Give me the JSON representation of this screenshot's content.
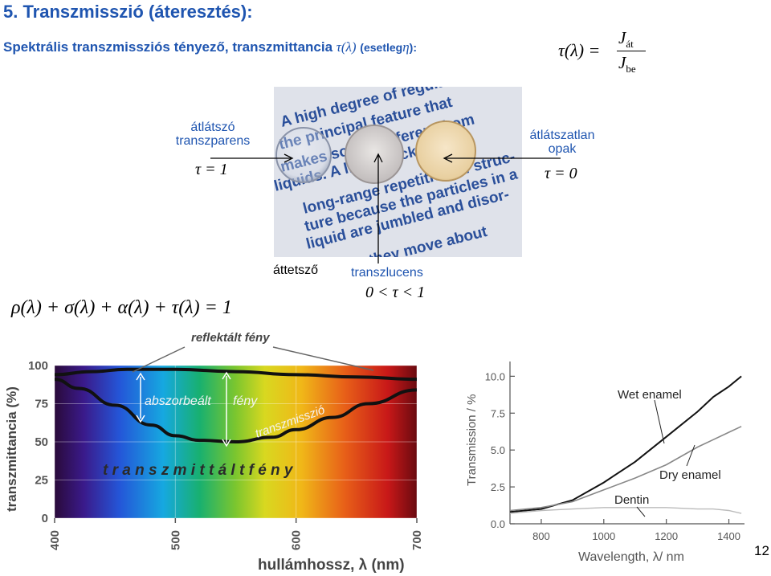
{
  "title": "5. Transzmisszió (áteresztés):",
  "subtitle": {
    "text": "Spektrális transzmissziós tényező, transzmittancia",
    "symbol": "τ(λ)",
    "note_prefix": "(esetleg",
    "note_symbol": "η",
    "note_suffix": "):"
  },
  "formula_tau": {
    "lhs": "τ(λ) =",
    "numerator": "J",
    "num_sub": "át",
    "denominator": "J",
    "den_sub": "be"
  },
  "formula_sum": "ρ(λ) + σ(λ) + α(λ) + τ(λ) = 1",
  "transparent": {
    "line1": "átlátszó",
    "line2": "transzparens",
    "formula": "τ = 1"
  },
  "opaque": {
    "line1": "átlátszatlan",
    "line2": "opak",
    "formula": "τ = 0"
  },
  "translucent": {
    "hu": "áttetsző",
    "label": "transzlucens",
    "formula": "0 < τ < 1"
  },
  "photo_text": [
    "A high degree of regularity",
    "the principal feature that",
    "makes solids different from",
    "liquids. A liquid lacks",
    "long-range repetition of struc-",
    "ture because the particles in a",
    "liquid are jumbled and disor-",
    "they move about"
  ],
  "colors": {
    "title_blue": "#1f55b0",
    "curve": "#111111"
  },
  "chart_data": [
    {
      "type": "line",
      "ylabel": "transzmittancia (%)",
      "xlabel": "hullámhossz, λ (nm)",
      "x_ticks": [
        "400",
        "500",
        "600",
        "700"
      ],
      "y_ticks": [
        "0",
        "25",
        "50",
        "75",
        "100"
      ],
      "xlim": [
        400,
        700
      ],
      "ylim": [
        0,
        100
      ],
      "background": "visible spectrum",
      "annotations": {
        "reflected": "reflektált fény",
        "absorbed": "abszorbeált",
        "light": "fény",
        "transmission": "transzmisszió",
        "transmitted": "t r a n s z m i t t á l t    f é n y"
      },
      "series": [
        {
          "x": [
            400,
            430,
            460,
            500,
            550,
            600,
            650,
            700
          ],
          "values": [
            94,
            96,
            97.5,
            97.5,
            96,
            94,
            92.5,
            91
          ]
        },
        {
          "x": [
            400,
            420,
            450,
            480,
            500,
            520,
            550,
            580,
            600,
            630,
            660,
            700
          ],
          "values": [
            91,
            85,
            74,
            61,
            54,
            51,
            50,
            53,
            58,
            66,
            75,
            84
          ]
        }
      ]
    },
    {
      "type": "line",
      "ylabel": "Transmission / %",
      "xlabel": "Wavelength, λ/ nm",
      "x_ticks": [
        "800",
        "1000",
        "1200",
        "1400"
      ],
      "y_ticks": [
        "0.0",
        "2.5",
        "5.0",
        "7.5",
        "10.0"
      ],
      "xlim": [
        700,
        1450
      ],
      "ylim": [
        0,
        11
      ],
      "series": [
        {
          "name": "Wet enamel",
          "x": [
            700,
            800,
            900,
            1000,
            1100,
            1200,
            1300,
            1350,
            1400,
            1440
          ],
          "values": [
            0.8,
            1.0,
            1.6,
            2.8,
            4.2,
            5.9,
            7.6,
            8.6,
            9.3,
            10.0
          ]
        },
        {
          "name": "Dry enamel",
          "x": [
            700,
            800,
            900,
            1000,
            1100,
            1200,
            1300,
            1350,
            1400,
            1440
          ],
          "values": [
            0.9,
            1.1,
            1.5,
            2.3,
            3.1,
            4.0,
            5.2,
            5.7,
            6.2,
            6.6
          ]
        },
        {
          "name": "Dentin",
          "x": [
            700,
            800,
            900,
            1000,
            1100,
            1200,
            1300,
            1350,
            1400,
            1440
          ],
          "values": [
            0.7,
            0.9,
            1.0,
            1.1,
            1.1,
            1.1,
            1.0,
            1.0,
            0.9,
            0.7
          ]
        }
      ]
    }
  ],
  "page_number": "12"
}
